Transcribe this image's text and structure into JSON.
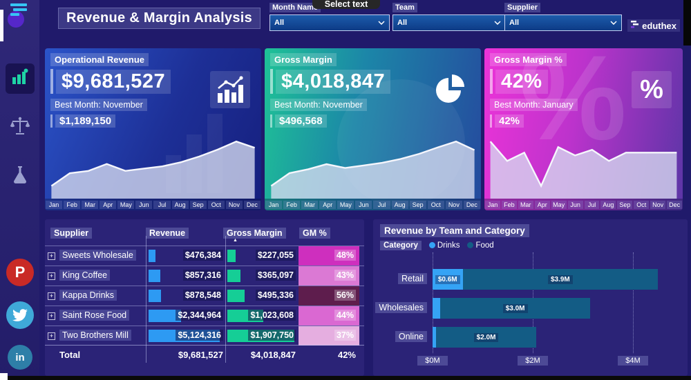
{
  "app": {
    "title": "Revenue & Margin Analysis",
    "brand": "eduthex",
    "tooltip": "Select text"
  },
  "filters": [
    {
      "label": "Month Name",
      "value": "All"
    },
    {
      "label": "Team",
      "value": "All"
    },
    {
      "label": "Supplier",
      "value": "All"
    }
  ],
  "months": [
    "Jan",
    "Feb",
    "Mar",
    "Apr",
    "May",
    "Jun",
    "Jul",
    "Aug",
    "Sep",
    "Oct",
    "Nov",
    "Dec"
  ],
  "kpi_cards": [
    {
      "title": "Operational Revenue",
      "value": "$9,681,527",
      "best_label": "Best Month: November",
      "best_value": "$1,189,150",
      "icon": "bar-chart-icon"
    },
    {
      "title": "Gross Margin",
      "value": "$4,018,847",
      "best_label": "Best Month: November",
      "best_value": "$496,568",
      "icon": "pie-chart-icon"
    },
    {
      "title": "Gross Margin %",
      "value": "42%",
      "best_label": "Best Month: January",
      "best_value": "42%",
      "icon": "percent-icon",
      "icon_glyph": "%"
    }
  ],
  "chart_data": [
    {
      "type": "area",
      "title": "Operational Revenue by Month (sparkline)",
      "x": [
        "Jan",
        "Feb",
        "Mar",
        "Apr",
        "May",
        "Jun",
        "Jul",
        "Aug",
        "Sep",
        "Oct",
        "Nov",
        "Dec"
      ],
      "values": [
        420000,
        640000,
        680000,
        800000,
        680000,
        720000,
        760000,
        830000,
        930000,
        1050000,
        1189150,
        1080000
      ],
      "note": "estimated from unlabeled sparkline; Nov = $1,189,150 labeled best month"
    },
    {
      "type": "area",
      "title": "Gross Margin by Month (sparkline)",
      "x": [
        "Jan",
        "Feb",
        "Mar",
        "Apr",
        "May",
        "Jun",
        "Jul",
        "Aug",
        "Sep",
        "Oct",
        "Nov",
        "Dec"
      ],
      "values": [
        150000,
        250000,
        280000,
        320000,
        290000,
        310000,
        330000,
        360000,
        400000,
        450000,
        496568,
        430000
      ],
      "note": "estimated from unlabeled sparkline; Nov = $496,568 labeled best month"
    },
    {
      "type": "area",
      "title": "Gross Margin % by Month (sparkline)",
      "x": [
        "Jan",
        "Feb",
        "Mar",
        "Apr",
        "May",
        "Jun",
        "Jul",
        "Aug",
        "Sep",
        "Oct",
        "Nov",
        "Dec"
      ],
      "values": [
        42,
        38.5,
        40,
        34,
        41,
        39.5,
        40.5,
        38.5,
        40,
        40,
        40,
        40
      ],
      "note": "estimated from unlabeled sparkline; Jan = 42% labeled best month"
    },
    {
      "type": "bar",
      "orientation": "horizontal",
      "title": "Revenue by Team and Category",
      "legend_title": "Category",
      "categories": [
        "Retail",
        "Wholesales",
        "Online"
      ],
      "series": [
        {
          "name": "Drinks",
          "color": "#35A3F5",
          "values": [
            0.6,
            0.15,
            0.07
          ],
          "labels": [
            "$0.6M",
            "",
            ""
          ]
        },
        {
          "name": "Food",
          "color": "#135C85",
          "values": [
            3.9,
            3.0,
            2.0
          ],
          "labels": [
            "$3.9M",
            "$3.0M",
            "$2.0M"
          ]
        }
      ],
      "x_ticks": [
        {
          "label": "$0M",
          "value": 0
        },
        {
          "label": "$2M",
          "value": 2
        },
        {
          "label": "$4M",
          "value": 4
        }
      ],
      "x_max": 5,
      "units": "USD millions"
    }
  ],
  "table": {
    "columns": [
      "Supplier",
      "Revenue",
      "Gross Margin",
      "GM %"
    ],
    "sorted_by": "Gross Margin",
    "sort_icon": "▲",
    "expand_icon": "+",
    "rows": [
      {
        "supplier": "Sweets Wholesale",
        "revenue": "$476,384",
        "revenue_val": 476384,
        "margin": "$227,055",
        "margin_val": 227055,
        "gm": "48%",
        "gm_color": "#CE2FBE"
      },
      {
        "supplier": "King Coffee",
        "revenue": "$857,316",
        "revenue_val": 857316,
        "margin": "$365,097",
        "margin_val": 365097,
        "gm": "43%",
        "gm_color": "#DB79D4"
      },
      {
        "supplier": "Kappa Drinks",
        "revenue": "$878,548",
        "revenue_val": 878548,
        "margin": "$495,336",
        "margin_val": 495336,
        "gm": "56%",
        "gm_color": "#5E1D4D"
      },
      {
        "supplier": "Saint Rose Food",
        "revenue": "$2,344,964",
        "revenue_val": 2344964,
        "margin": "$1,023,608",
        "margin_val": 1023608,
        "gm": "44%",
        "gm_color": "#DA68D2"
      },
      {
        "supplier": "Two Brothers Mill",
        "revenue": "$5,124,316",
        "revenue_val": 5124316,
        "margin": "$1,907,750",
        "margin_val": 1907750,
        "gm": "37%",
        "gm_color": "#E5AEE0"
      }
    ],
    "total": {
      "label": "Total",
      "revenue": "$9,681,527",
      "margin": "$4,018,847",
      "gm": "42%"
    }
  },
  "social": {
    "pinterest": "P",
    "linkedin": "in"
  },
  "colors": {
    "background": "#201A6B",
    "panel": "#2B2377",
    "revenue_bar": "#2D9AF3",
    "margin_bar": "#15CE96",
    "drinks": "#35A3F5",
    "food": "#135C85",
    "card_blue": "#2B54C9",
    "card_green": "#1EC296",
    "card_pink": "#EC33D8"
  }
}
